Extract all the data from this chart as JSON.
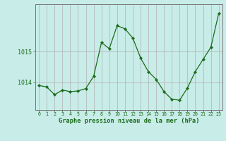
{
  "x": [
    0,
    1,
    2,
    3,
    4,
    5,
    6,
    7,
    8,
    9,
    10,
    11,
    12,
    13,
    14,
    15,
    16,
    17,
    18,
    19,
    20,
    21,
    22,
    23
  ],
  "y": [
    1013.9,
    1013.85,
    1013.6,
    1013.75,
    1013.7,
    1013.72,
    1013.8,
    1014.2,
    1015.3,
    1015.1,
    1015.85,
    1015.75,
    1015.45,
    1014.8,
    1014.35,
    1014.1,
    1013.7,
    1013.45,
    1013.42,
    1013.82,
    1014.35,
    1014.75,
    1015.15,
    1016.25
  ],
  "line_color": "#1a6b1a",
  "marker": "D",
  "marker_size": 2.2,
  "bg_color": "#c8ece8",
  "grid_color": "#b0b0b0",
  "axis_label_color": "#1a6b1a",
  "tick_color": "#1a6b1a",
  "ylabel_ticks": [
    1014,
    1015
  ],
  "xlabel": "Graphe pression niveau de la mer (hPa)",
  "ylim": [
    1013.1,
    1016.55
  ],
  "xlim": [
    -0.5,
    23.5
  ]
}
